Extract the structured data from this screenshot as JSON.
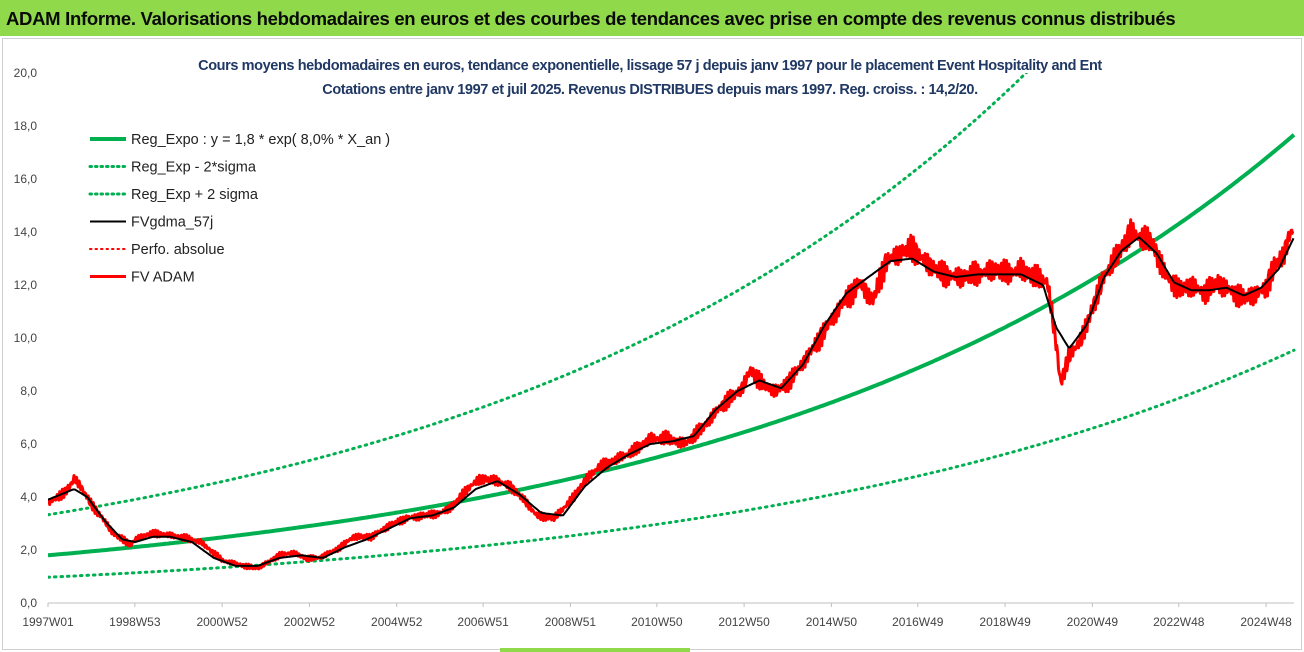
{
  "header": {
    "title": "ADAM Informe. Valorisations hebdomadaires en euros et des courbes de tendances avec prise en compte des revenus connus distribués"
  },
  "colors": {
    "header_bg": "#8fd94a",
    "green": "#00b050",
    "red": "#ff0000",
    "black": "#000000",
    "title": "#203864"
  },
  "chart_data": {
    "type": "line",
    "title_line1": "Cours moyens hebdomadaires en euros, tendance exponentielle, lissage 57 j depuis janv 1997  pour le placement Event Hospitality and Ent",
    "title_line2": "Cotations entre janv 1997 et juil 2025. Revenus DISTRIBUES depuis mars 1997. Reg. croiss. : 14,2/20.",
    "ylim": [
      0,
      20
    ],
    "y_ticks": [
      "0,0",
      "2,0",
      "4,0",
      "6,0",
      "8,0",
      "10,0",
      "12,0",
      "14,0",
      "16,0",
      "18,0",
      "20,0"
    ],
    "xlim": [
      1997.0,
      2025.55
    ],
    "x_ticks": [
      {
        "label": "1997W01",
        "t": 1997.0
      },
      {
        "label": "1998W53",
        "t": 1998.99
      },
      {
        "label": "2000W52",
        "t": 2000.99
      },
      {
        "label": "2002W52",
        "t": 2002.99
      },
      {
        "label": "2004W52",
        "t": 2004.99
      },
      {
        "label": "2006W51",
        "t": 2006.97
      },
      {
        "label": "2008W51",
        "t": 2008.97
      },
      {
        "label": "2010W50",
        "t": 2010.95
      },
      {
        "label": "2012W50",
        "t": 2012.95
      },
      {
        "label": "2014W50",
        "t": 2014.95
      },
      {
        "label": "2016W49",
        "t": 2016.93
      },
      {
        "label": "2018W49",
        "t": 2018.93
      },
      {
        "label": "2020W49",
        "t": 2020.93
      },
      {
        "label": "2022W48",
        "t": 2022.91
      },
      {
        "label": "2024W48",
        "t": 2024.91
      }
    ],
    "grid": false,
    "legend_position": "top-left",
    "regression": {
      "a": 1.8,
      "rate": 0.08,
      "sigma_factor_low": 0.54,
      "sigma_factor_high": 1.85
    },
    "series": [
      {
        "name": "Reg_Expo : y = 1,8  * exp( 8,0% *  X_an )",
        "color": "#00b050",
        "style": "solid",
        "width": 4
      },
      {
        "name": "Reg_Exp - 2*sigma",
        "color": "#00b050",
        "style": "dotted",
        "width": 3
      },
      {
        "name": "Reg_Exp + 2 sigma",
        "color": "#00b050",
        "style": "dotted",
        "width": 3
      },
      {
        "name": "FVgdma_57j",
        "color": "#000000",
        "style": "solid",
        "width": 2
      },
      {
        "name": "Perfo. absolue",
        "color": "#ff0000",
        "style": "dotted",
        "width": 2
      },
      {
        "name": "FV ADAM",
        "color": "#ff0000",
        "style": "solid",
        "width": 3
      }
    ],
    "fv_adam": {
      "x": [
        1997.0,
        1997.25,
        1997.5,
        1997.6,
        1997.75,
        1998.0,
        1998.25,
        1998.5,
        1998.9,
        1999.0,
        1999.3,
        1999.6,
        2000.0,
        2000.5,
        2001.0,
        2001.5,
        2001.8,
        2002.0,
        2002.3,
        2002.6,
        2002.9,
        2003.2,
        2003.6,
        2004.0,
        2004.4,
        2004.8,
        2005.2,
        2005.6,
        2006.0,
        2006.3,
        2006.6,
        2006.9,
        2007.3,
        2007.6,
        2007.9,
        2008.2,
        2008.6,
        2009.0,
        2009.3,
        2009.6,
        2010.0,
        2010.4,
        2010.8,
        2011.2,
        2011.6,
        2012.0,
        2012.4,
        2012.7,
        2012.9,
        2013.1,
        2013.4,
        2013.7,
        2014.0,
        2014.4,
        2014.8,
        2015.2,
        2015.6,
        2015.9,
        2016.2,
        2016.5,
        2016.8,
        2017.1,
        2017.5,
        2017.9,
        2018.3,
        2018.7,
        2019.0,
        2019.3,
        2019.6,
        2019.9,
        2020.1,
        2020.2,
        2020.4,
        2020.7,
        2020.9,
        2021.2,
        2021.5,
        2021.8,
        2022.0,
        2022.3,
        2022.6,
        2022.9,
        2023.2,
        2023.5,
        2023.8,
        2024.1,
        2024.4,
        2024.7,
        2024.9,
        2025.1,
        2025.3,
        2025.45,
        2025.55
      ],
      "y": [
        3.8,
        4.0,
        4.4,
        4.7,
        4.4,
        3.7,
        3.2,
        2.6,
        2.2,
        2.4,
        2.6,
        2.6,
        2.5,
        2.3,
        1.6,
        1.4,
        1.3,
        1.5,
        1.8,
        1.9,
        1.7,
        1.7,
        2.0,
        2.5,
        2.5,
        2.9,
        3.2,
        3.3,
        3.4,
        3.7,
        4.3,
        4.7,
        4.6,
        4.4,
        3.9,
        3.3,
        3.2,
        3.9,
        4.6,
        5.1,
        5.4,
        5.7,
        6.2,
        6.2,
        6.0,
        6.6,
        7.4,
        7.8,
        8.1,
        8.8,
        8.2,
        8.0,
        8.4,
        9.3,
        10.3,
        11.3,
        12.1,
        11.4,
        12.9,
        13.2,
        13.4,
        12.9,
        12.4,
        12.3,
        12.4,
        12.6,
        12.4,
        12.6,
        12.3,
        12.1,
        9.8,
        8.3,
        9.3,
        10.0,
        11.0,
        12.3,
        13.1,
        14.0,
        13.8,
        13.6,
        12.4,
        11.8,
        12.0,
        11.7,
        12.1,
        11.8,
        11.5,
        11.7,
        11.9,
        12.7,
        13.1,
        13.9,
        14.1
      ]
    },
    "fv_gdma": {
      "x": [
        1997.0,
        1997.3,
        1997.6,
        1997.9,
        1998.3,
        1998.7,
        1999.0,
        1999.4,
        1999.8,
        2000.3,
        2000.8,
        2001.3,
        2001.8,
        2002.3,
        2002.8,
        2003.3,
        2003.8,
        2004.3,
        2004.8,
        2005.3,
        2005.8,
        2006.3,
        2006.8,
        2007.3,
        2007.8,
        2008.3,
        2008.8,
        2009.3,
        2009.8,
        2010.3,
        2010.8,
        2011.3,
        2011.8,
        2012.3,
        2012.8,
        2013.3,
        2013.8,
        2014.3,
        2014.8,
        2015.3,
        2015.8,
        2016.3,
        2016.8,
        2017.3,
        2017.8,
        2018.3,
        2018.8,
        2019.3,
        2019.8,
        2020.1,
        2020.4,
        2020.8,
        2021.2,
        2021.6,
        2022.0,
        2022.4,
        2022.8,
        2023.2,
        2023.6,
        2024.0,
        2024.4,
        2024.8,
        2025.2,
        2025.55
      ],
      "y": [
        3.9,
        4.1,
        4.3,
        4.0,
        3.1,
        2.4,
        2.3,
        2.5,
        2.5,
        2.3,
        1.7,
        1.4,
        1.4,
        1.7,
        1.8,
        1.7,
        2.1,
        2.4,
        2.8,
        3.2,
        3.3,
        3.6,
        4.3,
        4.6,
        4.1,
        3.4,
        3.3,
        4.4,
        5.1,
        5.6,
        6.0,
        6.1,
        6.3,
        7.3,
        8.0,
        8.4,
        8.1,
        9.0,
        10.5,
        11.7,
        12.3,
        12.9,
        13.0,
        12.5,
        12.3,
        12.4,
        12.4,
        12.4,
        12.0,
        10.4,
        9.6,
        10.5,
        12.3,
        13.3,
        13.8,
        13.2,
        12.1,
        11.8,
        11.8,
        11.9,
        11.6,
        11.9,
        12.6,
        13.8
      ]
    }
  }
}
